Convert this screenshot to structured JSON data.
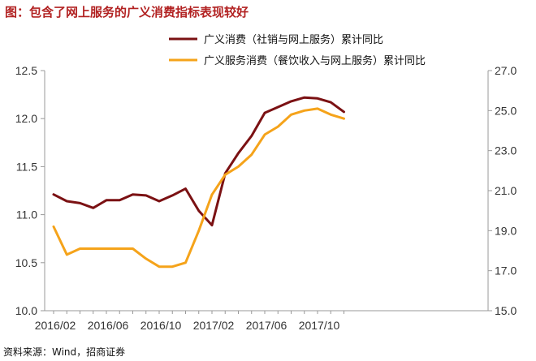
{
  "title": "图：包含了网上服务的广义消费指标表现较好",
  "source": "资料来源：Wind，招商证券",
  "chart_data": {
    "type": "line",
    "x": [
      "2016/02",
      "2016/03",
      "2016/04",
      "2016/05",
      "2016/06",
      "2016/07",
      "2016/08",
      "2016/09",
      "2016/10",
      "2016/11",
      "2016/12",
      "2017/01",
      "2017/02",
      "2017/03",
      "2017/04",
      "2017/05",
      "2017/06",
      "2017/07",
      "2017/08",
      "2017/09",
      "2017/10",
      "2017/11",
      "2017/12"
    ],
    "xtick_labels": [
      "2016/02",
      "2016/06",
      "2016/10",
      "2017/02",
      "2017/06",
      "2017/10"
    ],
    "series": [
      {
        "name": "广义消费（社销与网上服务）累计同比",
        "axis": "left",
        "color": "#7B1113",
        "values": [
          11.21,
          11.14,
          11.12,
          11.07,
          11.15,
          11.15,
          11.21,
          11.2,
          11.14,
          11.2,
          11.27,
          11.04,
          10.89,
          11.43,
          11.64,
          11.82,
          12.06,
          12.12,
          12.18,
          12.22,
          12.21,
          12.17,
          12.07
        ]
      },
      {
        "name": "广义服务消费（餐饮收入与网上服务）累计同比",
        "axis": "right",
        "color": "#F5A31A",
        "values": [
          19.2,
          17.8,
          18.1,
          18.1,
          18.1,
          18.1,
          18.1,
          17.6,
          17.2,
          17.2,
          17.4,
          19.0,
          20.8,
          21.8,
          22.2,
          22.8,
          23.8,
          24.2,
          24.8,
          25.0,
          25.1,
          24.8,
          24.6
        ]
      }
    ],
    "left_axis": {
      "ylim": [
        10.0,
        12.5
      ],
      "ticks": [
        "10.0",
        "10.5",
        "11.0",
        "11.5",
        "12.0",
        "12.5"
      ]
    },
    "right_axis": {
      "ylim": [
        15.0,
        27.0
      ],
      "ticks": [
        "15.0",
        "17.0",
        "19.0",
        "21.0",
        "23.0",
        "25.0",
        "27.0"
      ]
    },
    "legend_position": "top",
    "grid": false
  }
}
